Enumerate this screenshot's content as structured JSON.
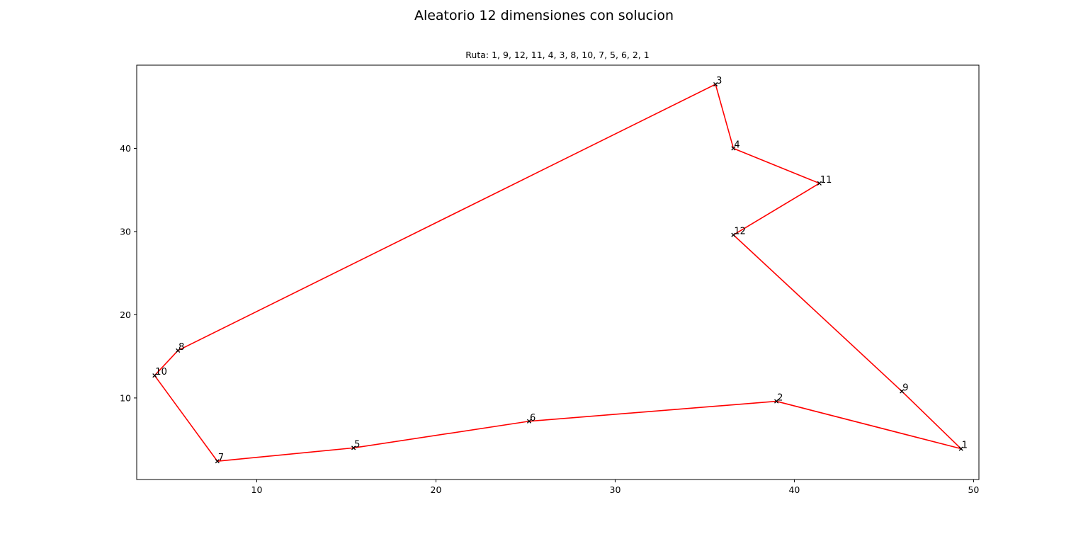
{
  "figure": {
    "title": "Aleatorio 12 dimensiones con solucion"
  },
  "chart_data": {
    "type": "line",
    "title": "Ruta: 1, 9, 12, 11, 4, 3, 8, 10, 7, 5, 6, 2, 1",
    "xlabel": "",
    "ylabel": "",
    "xlim": [
      3.3,
      50.3
    ],
    "ylim": [
      0.2,
      50.0
    ],
    "xticks": [
      10,
      20,
      30,
      40,
      50
    ],
    "yticks": [
      10,
      20,
      30,
      40
    ],
    "grid": false,
    "legend": "none",
    "points": [
      {
        "label": "1",
        "x": 49.3,
        "y": 3.9
      },
      {
        "label": "2",
        "x": 39.0,
        "y": 9.6
      },
      {
        "label": "3",
        "x": 35.6,
        "y": 47.7
      },
      {
        "label": "4",
        "x": 36.6,
        "y": 40.0
      },
      {
        "label": "5",
        "x": 15.4,
        "y": 4.0
      },
      {
        "label": "6",
        "x": 25.2,
        "y": 7.2
      },
      {
        "label": "7",
        "x": 7.8,
        "y": 2.4
      },
      {
        "label": "8",
        "x": 5.6,
        "y": 15.7
      },
      {
        "label": "9",
        "x": 46.0,
        "y": 10.8
      },
      {
        "label": "10",
        "x": 4.3,
        "y": 12.7
      },
      {
        "label": "11",
        "x": 41.4,
        "y": 35.8
      },
      {
        "label": "12",
        "x": 36.6,
        "y": 29.6
      }
    ],
    "route": [
      "1",
      "9",
      "12",
      "11",
      "4",
      "3",
      "8",
      "10",
      "7",
      "5",
      "6",
      "2",
      "1"
    ],
    "colors": {
      "route": "#ff0000",
      "marker": "#000000"
    }
  }
}
